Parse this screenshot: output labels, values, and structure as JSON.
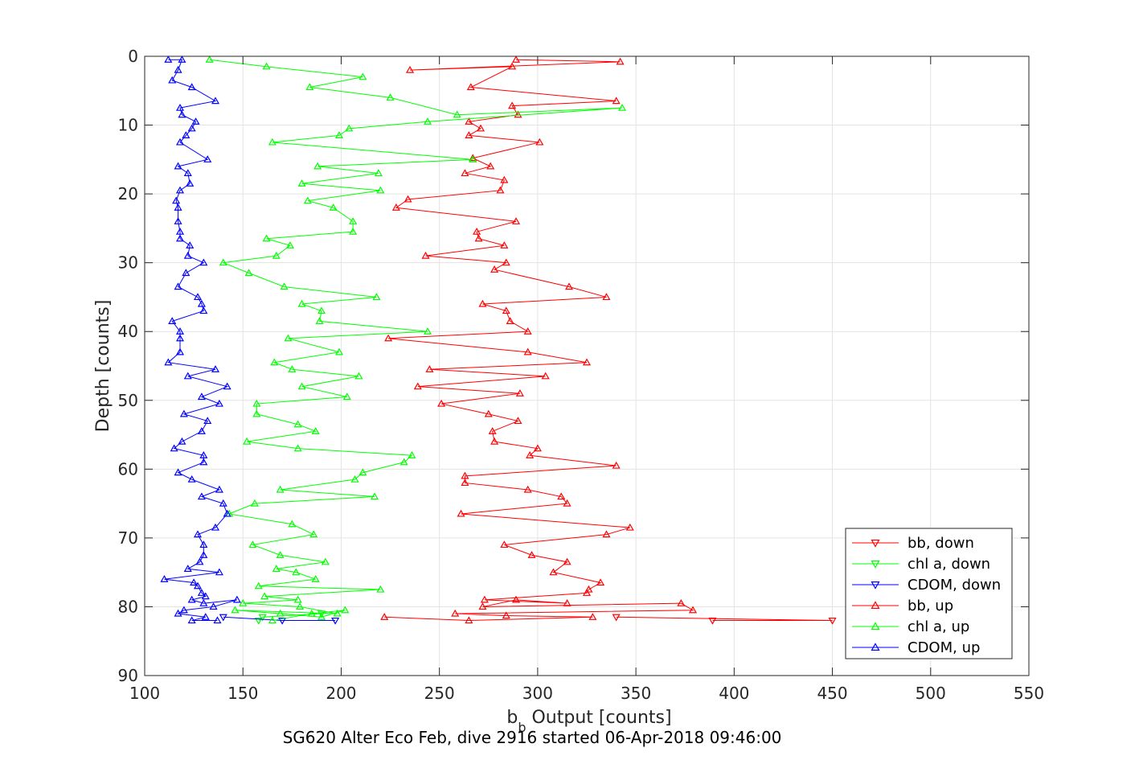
{
  "chart_data": {
    "type": "line",
    "xlabel_main": "b",
    "xlabel_sub": "b",
    "xlabel_rest": " Output [counts]",
    "ylabel": "Depth [counts]",
    "caption": "SG620 Alter Eco Feb, dive 2916 started 06-Apr-2018 09:46:00",
    "xlim": [
      100,
      550
    ],
    "ylim": [
      0,
      90
    ],
    "y_reversed": true,
    "grid": true,
    "legend_position": "lower-right",
    "xticks": [
      "100",
      "150",
      "200",
      "250",
      "300",
      "350",
      "400",
      "450",
      "500",
      "550"
    ],
    "yticks": [
      "0",
      "10",
      "20",
      "30",
      "40",
      "50",
      "60",
      "70",
      "80",
      "90"
    ],
    "series": [
      {
        "name": "bb, down",
        "color": "#ff0000",
        "marker": "triangle-down",
        "x": [
          340,
          450,
          389
        ],
        "y": [
          81.5,
          82,
          82
        ]
      },
      {
        "name": "chl a, down",
        "color": "#00ff00",
        "marker": "triangle-down",
        "x": [
          190,
          160,
          158
        ],
        "y": [
          81,
          81.5,
          82
        ]
      },
      {
        "name": "CDOM, down",
        "color": "#0000ff",
        "marker": "triangle-down",
        "x": [
          140,
          170,
          197
        ],
        "y": [
          81.5,
          82,
          82
        ]
      },
      {
        "name": "bb, up",
        "color": "#ff0000",
        "marker": "triangle-up",
        "x": [
          289,
          342,
          235,
          287,
          266,
          340,
          287,
          290,
          265,
          271,
          265,
          301,
          267,
          276,
          263,
          283,
          281,
          234,
          228,
          289,
          269,
          270,
          283,
          243,
          284,
          278,
          316,
          335,
          272,
          284,
          286,
          295,
          224,
          295,
          325,
          245,
          304,
          239,
          291,
          251,
          275,
          290,
          277,
          278,
          300,
          296,
          340,
          263,
          263,
          295,
          312,
          315,
          261,
          347,
          335,
          283,
          297,
          315,
          308,
          332,
          326,
          325,
          273,
          315,
          289,
          272,
          373,
          379,
          258,
          284,
          328,
          265,
          222
        ],
        "y": [
          0.5,
          0.8,
          2,
          1.5,
          4.5,
          6.5,
          7.2,
          8.5,
          9.5,
          10.5,
          11.5,
          12.5,
          14.8,
          16,
          17,
          18,
          19.5,
          20.8,
          22,
          24,
          25.5,
          26.5,
          27.5,
          29,
          30,
          31,
          33.5,
          35,
          36,
          37,
          38.5,
          40,
          41,
          43,
          44.5,
          45.5,
          46.5,
          48,
          49,
          50.5,
          52,
          53,
          54.5,
          56,
          57,
          58,
          59.5,
          61,
          62,
          63,
          64,
          65,
          66.5,
          68.5,
          69.5,
          71,
          72.5,
          73.5,
          75,
          76.5,
          77.5,
          78,
          79,
          79.5,
          79,
          80,
          79.5,
          80.5,
          81,
          81.3,
          81.5,
          82,
          81.5
        ]
      },
      {
        "name": "chl a, up",
        "color": "#00ff00",
        "marker": "triangle-up",
        "x": [
          133,
          162,
          211,
          184,
          225,
          259,
          343,
          244,
          204,
          199,
          165,
          267,
          188,
          219,
          180,
          220,
          183,
          196,
          206,
          206,
          162,
          174,
          167,
          140,
          153,
          171,
          218,
          180,
          190,
          189,
          244,
          173,
          199,
          166,
          175,
          209,
          180,
          203,
          157,
          157,
          178,
          187,
          152,
          178,
          236,
          232,
          211,
          207,
          169,
          217,
          156,
          143,
          175,
          186,
          155,
          169,
          192,
          167,
          177,
          187,
          158,
          220,
          161,
          178,
          150,
          179,
          198,
          146,
          169,
          190,
          202,
          185,
          165
        ],
        "y": [
          0.5,
          1.5,
          3,
          4.5,
          6,
          8.5,
          7.5,
          9.5,
          10.5,
          11.5,
          12.5,
          15,
          16,
          17,
          18.5,
          19.5,
          21,
          22,
          24,
          25.5,
          26.5,
          27.5,
          29,
          30,
          31.5,
          33.5,
          35,
          36,
          37,
          38.5,
          40,
          41,
          43,
          44.5,
          45.5,
          46.5,
          48,
          49.5,
          50.5,
          52,
          53.5,
          54.5,
          56,
          57,
          58,
          59,
          60.5,
          61.5,
          63,
          64,
          65,
          66.5,
          68,
          69.5,
          71,
          72.5,
          73.5,
          74.5,
          75,
          76,
          77,
          77.5,
          78.5,
          79,
          79.5,
          80,
          81,
          80.5,
          81,
          81.5,
          80.5,
          81,
          82
        ]
      },
      {
        "name": "CDOM, up",
        "color": "#0000ff",
        "marker": "triangle-up",
        "x": [
          112,
          119,
          117,
          114,
          124,
          136,
          118,
          119,
          126,
          124,
          121,
          118,
          132,
          117,
          122,
          123,
          118,
          116,
          117,
          117,
          118,
          118,
          123,
          122,
          130,
          121,
          117,
          127,
          129,
          130,
          114,
          118,
          118,
          118,
          112,
          136,
          122,
          142,
          129,
          138,
          120,
          132,
          129,
          119,
          115,
          130,
          130,
          117,
          124,
          138,
          129,
          140,
          142,
          136,
          127,
          130,
          130,
          128,
          122,
          138,
          110,
          125,
          127,
          129,
          131,
          124,
          130,
          147,
          135,
          120,
          117,
          131,
          124,
          137
        ],
        "y": [
          0.5,
          0.5,
          2,
          3.5,
          4.5,
          6.5,
          7.5,
          8.5,
          9.5,
          10.5,
          11.5,
          12.5,
          15,
          16,
          17,
          18.5,
          19.5,
          21,
          22,
          24,
          25.5,
          26.5,
          27.5,
          29,
          30,
          31.5,
          33.5,
          35,
          36,
          37,
          38.5,
          40,
          41,
          43,
          44.5,
          45.5,
          46.5,
          48,
          49.5,
          50.5,
          52,
          53,
          54.5,
          56,
          57,
          58,
          59,
          60.5,
          61.5,
          63,
          64,
          65,
          66.5,
          68.5,
          69.5,
          71,
          72.5,
          73.5,
          74.5,
          75,
          76,
          76.5,
          77,
          78,
          78.5,
          79,
          79.5,
          79,
          80,
          80.5,
          81,
          81.5,
          82,
          82
        ]
      }
    ]
  }
}
